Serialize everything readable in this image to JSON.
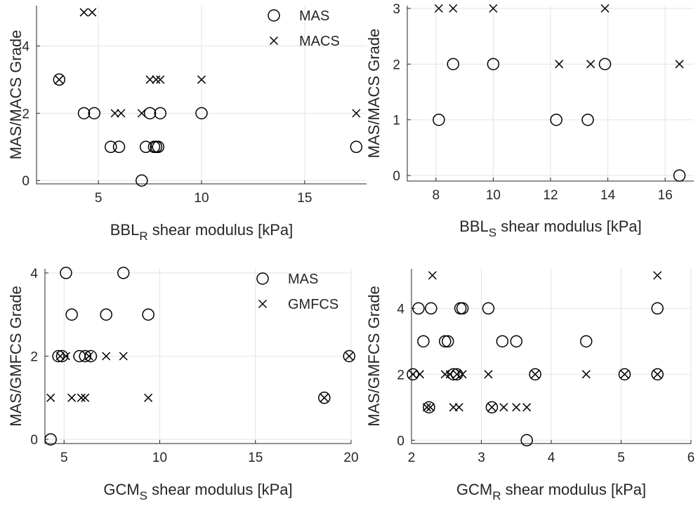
{
  "chart_data": [
    {
      "type": "scatter",
      "xlabel_main": "BBL",
      "xlabel_sub": "R",
      "xlabel_rest": " shear modulus [kPa]",
      "ylabel": "MAS/MACS Grade",
      "xlim": [
        2,
        18
      ],
      "ylim": [
        -0.1,
        5.2
      ],
      "xticks": [
        5,
        10,
        15
      ],
      "yticks": [
        0,
        2,
        4
      ],
      "legend": "top-right",
      "series": [
        {
          "name": "MAS",
          "marker": "circle",
          "points": [
            [
              3.1,
              3
            ],
            [
              4.3,
              2
            ],
            [
              4.8,
              2
            ],
            [
              5.6,
              1
            ],
            [
              6,
              1
            ],
            [
              7.1,
              0
            ],
            [
              7.3,
              1
            ],
            [
              7.5,
              2
            ],
            [
              7.7,
              1
            ],
            [
              7.8,
              1
            ],
            [
              7.9,
              1
            ],
            [
              8,
              2
            ],
            [
              10,
              2
            ],
            [
              17.5,
              1
            ]
          ]
        },
        {
          "name": "MACS",
          "marker": "x",
          "points": [
            [
              3.1,
              3
            ],
            [
              4.3,
              5
            ],
            [
              4.7,
              5
            ],
            [
              5.8,
              2
            ],
            [
              6.1,
              2
            ],
            [
              7.1,
              2
            ],
            [
              7.5,
              3
            ],
            [
              7.8,
              3
            ],
            [
              8,
              3
            ],
            [
              10,
              3
            ],
            [
              17.5,
              2
            ]
          ]
        }
      ]
    },
    {
      "type": "scatter",
      "xlabel_main": "BBL",
      "xlabel_sub": "S",
      "xlabel_rest": " shear modulus [kPa]",
      "ylabel": "MAS/MACS Grade",
      "xlim": [
        7,
        17
      ],
      "ylim": [
        -0.1,
        3.05
      ],
      "xticks": [
        8,
        10,
        12,
        14,
        16
      ],
      "yticks": [
        0,
        1,
        2,
        3
      ],
      "legend": "none",
      "series": [
        {
          "name": "MAS",
          "marker": "circle",
          "points": [
            [
              8.1,
              1
            ],
            [
              8.6,
              2
            ],
            [
              10,
              2
            ],
            [
              12.2,
              1
            ],
            [
              13.3,
              1
            ],
            [
              13.9,
              2
            ],
            [
              16.5,
              0
            ]
          ]
        },
        {
          "name": "MACS",
          "marker": "x",
          "points": [
            [
              8.1,
              3
            ],
            [
              8.6,
              3
            ],
            [
              10,
              3
            ],
            [
              12.3,
              2
            ],
            [
              13.4,
              2
            ],
            [
              13.9,
              3
            ],
            [
              16.5,
              2
            ]
          ]
        }
      ]
    },
    {
      "type": "scatter",
      "xlabel_main": "GCM",
      "xlabel_sub": "S",
      "xlabel_rest": " shear modulus [kPa]",
      "ylabel": "MAS/GMFCS Grade",
      "xlim": [
        4,
        20
      ],
      "ylim": [
        -0.1,
        4.1
      ],
      "xticks": [
        5,
        10,
        15,
        20
      ],
      "yticks": [
        0,
        2,
        4
      ],
      "legend": "top-right",
      "series": [
        {
          "name": "MAS",
          "marker": "circle",
          "points": [
            [
              4.3,
              0
            ],
            [
              4.7,
              2
            ],
            [
              4.9,
              2
            ],
            [
              5.1,
              4
            ],
            [
              5.4,
              3
            ],
            [
              5.8,
              2
            ],
            [
              6.1,
              2
            ],
            [
              6.4,
              2
            ],
            [
              7.2,
              3
            ],
            [
              8.1,
              4
            ],
            [
              9.4,
              3
            ],
            [
              18.6,
              1
            ],
            [
              19.9,
              2
            ]
          ]
        },
        {
          "name": "GMFCS",
          "marker": "x",
          "points": [
            [
              4.3,
              1
            ],
            [
              4.8,
              2
            ],
            [
              5.1,
              2
            ],
            [
              5.4,
              1
            ],
            [
              5.9,
              1
            ],
            [
              6.1,
              1
            ],
            [
              6.3,
              2
            ],
            [
              7.2,
              2
            ],
            [
              8.1,
              2
            ],
            [
              9.4,
              1
            ],
            [
              18.6,
              1
            ],
            [
              19.9,
              2
            ]
          ]
        }
      ]
    },
    {
      "type": "scatter",
      "xlabel_main": "GCM",
      "xlabel_sub": "R",
      "xlabel_rest": " shear modulus [kPa]",
      "ylabel": "MAS/GMFCS Grade",
      "xlim": [
        2,
        6
      ],
      "ylim": [
        -0.1,
        5.2
      ],
      "xticks": [
        2,
        3,
        4,
        5,
        6
      ],
      "yticks": [
        0,
        2,
        4
      ],
      "legend": "none",
      "series": [
        {
          "name": "MAS",
          "marker": "circle",
          "points": [
            [
              2.02,
              2
            ],
            [
              2.1,
              4
            ],
            [
              2.17,
              3
            ],
            [
              2.25,
              1
            ],
            [
              2.28,
              4
            ],
            [
              2.48,
              3
            ],
            [
              2.52,
              3
            ],
            [
              2.6,
              2
            ],
            [
              2.65,
              2
            ],
            [
              2.7,
              4
            ],
            [
              2.73,
              4
            ],
            [
              3.1,
              4
            ],
            [
              3.15,
              1
            ],
            [
              3.3,
              3
            ],
            [
              3.5,
              3
            ],
            [
              3.65,
              0
            ],
            [
              3.77,
              2
            ],
            [
              4.5,
              3
            ],
            [
              5.05,
              2
            ],
            [
              5.52,
              4
            ],
            [
              5.52,
              2
            ]
          ]
        },
        {
          "name": "GMFCS",
          "marker": "x",
          "points": [
            [
              2.02,
              2
            ],
            [
              2.12,
              2
            ],
            [
              2.22,
              1
            ],
            [
              2.27,
              1
            ],
            [
              2.3,
              5
            ],
            [
              2.48,
              2
            ],
            [
              2.55,
              2
            ],
            [
              2.6,
              1
            ],
            [
              2.65,
              2
            ],
            [
              2.68,
              1
            ],
            [
              2.73,
              2
            ],
            [
              3.1,
              2
            ],
            [
              3.15,
              1
            ],
            [
              3.32,
              1
            ],
            [
              3.5,
              1
            ],
            [
              3.65,
              1
            ],
            [
              3.77,
              2
            ],
            [
              4.5,
              2
            ],
            [
              5.05,
              2
            ],
            [
              5.52,
              5
            ],
            [
              5.52,
              2
            ]
          ]
        }
      ]
    }
  ]
}
